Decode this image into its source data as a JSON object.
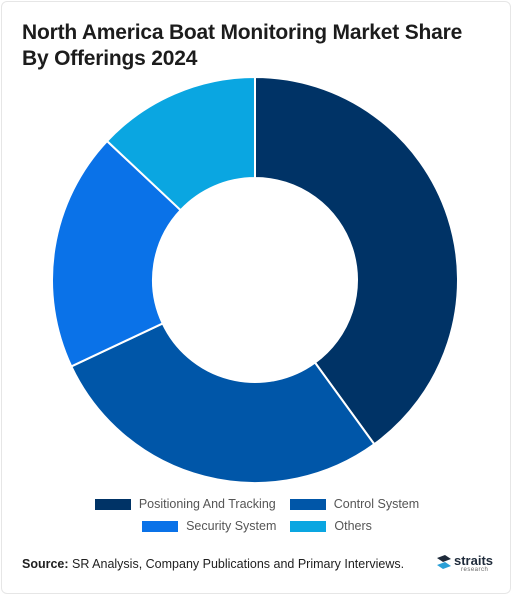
{
  "title": "North America Boat Monitoring Market Share By Offerings 2024",
  "chart_data": {
    "type": "pie",
    "donut": true,
    "title": "North America Boat Monitoring Market Share By Offerings 2024",
    "categories": [
      "Positioning And Tracking",
      "Control System",
      "Security System",
      "Others"
    ],
    "values": [
      40,
      28,
      19,
      13
    ],
    "colors": [
      "#003366",
      "#0056a8",
      "#0a72e8",
      "#0aa6e1"
    ],
    "legend_position": "bottom"
  },
  "source": {
    "label": "Source:",
    "text": " SR Analysis, Company Publications and Primary Interviews."
  },
  "logo": {
    "word": "straits",
    "sub": "research"
  }
}
